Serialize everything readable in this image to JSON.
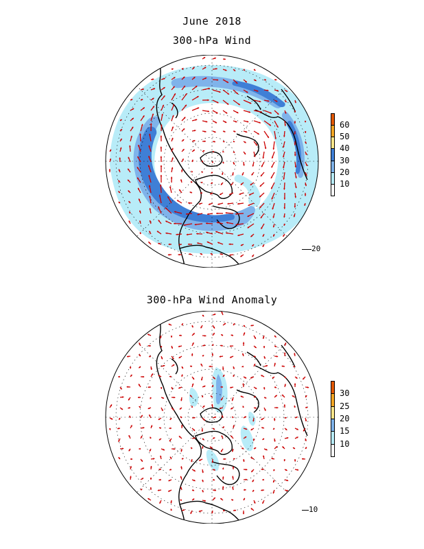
{
  "titles": {
    "main": "June 2018",
    "wind": "300-hPa Wind",
    "anomaly": "300-hPa Wind Anomaly"
  },
  "colorbars": {
    "wind": {
      "labels": [
        "60",
        "50",
        "40",
        "30",
        "20",
        "10"
      ],
      "colors": [
        "#e25800",
        "#f5a623",
        "#fde68a",
        "#3f7fd6",
        "#7fb3ea",
        "#b8ecf8",
        "#ffffff"
      ]
    },
    "anomaly": {
      "labels": [
        "30",
        "25",
        "20",
        "15",
        "10"
      ],
      "colors": [
        "#e25800",
        "#f5a623",
        "#fde68a",
        "#7fb3ea",
        "#b8ecf8",
        "#ffffff"
      ]
    }
  },
  "reference_vectors": {
    "wind": "20",
    "anomaly": "10"
  },
  "colors": {
    "vector": "#cc0000",
    "coast": "#000000",
    "grid": "#000000"
  }
}
